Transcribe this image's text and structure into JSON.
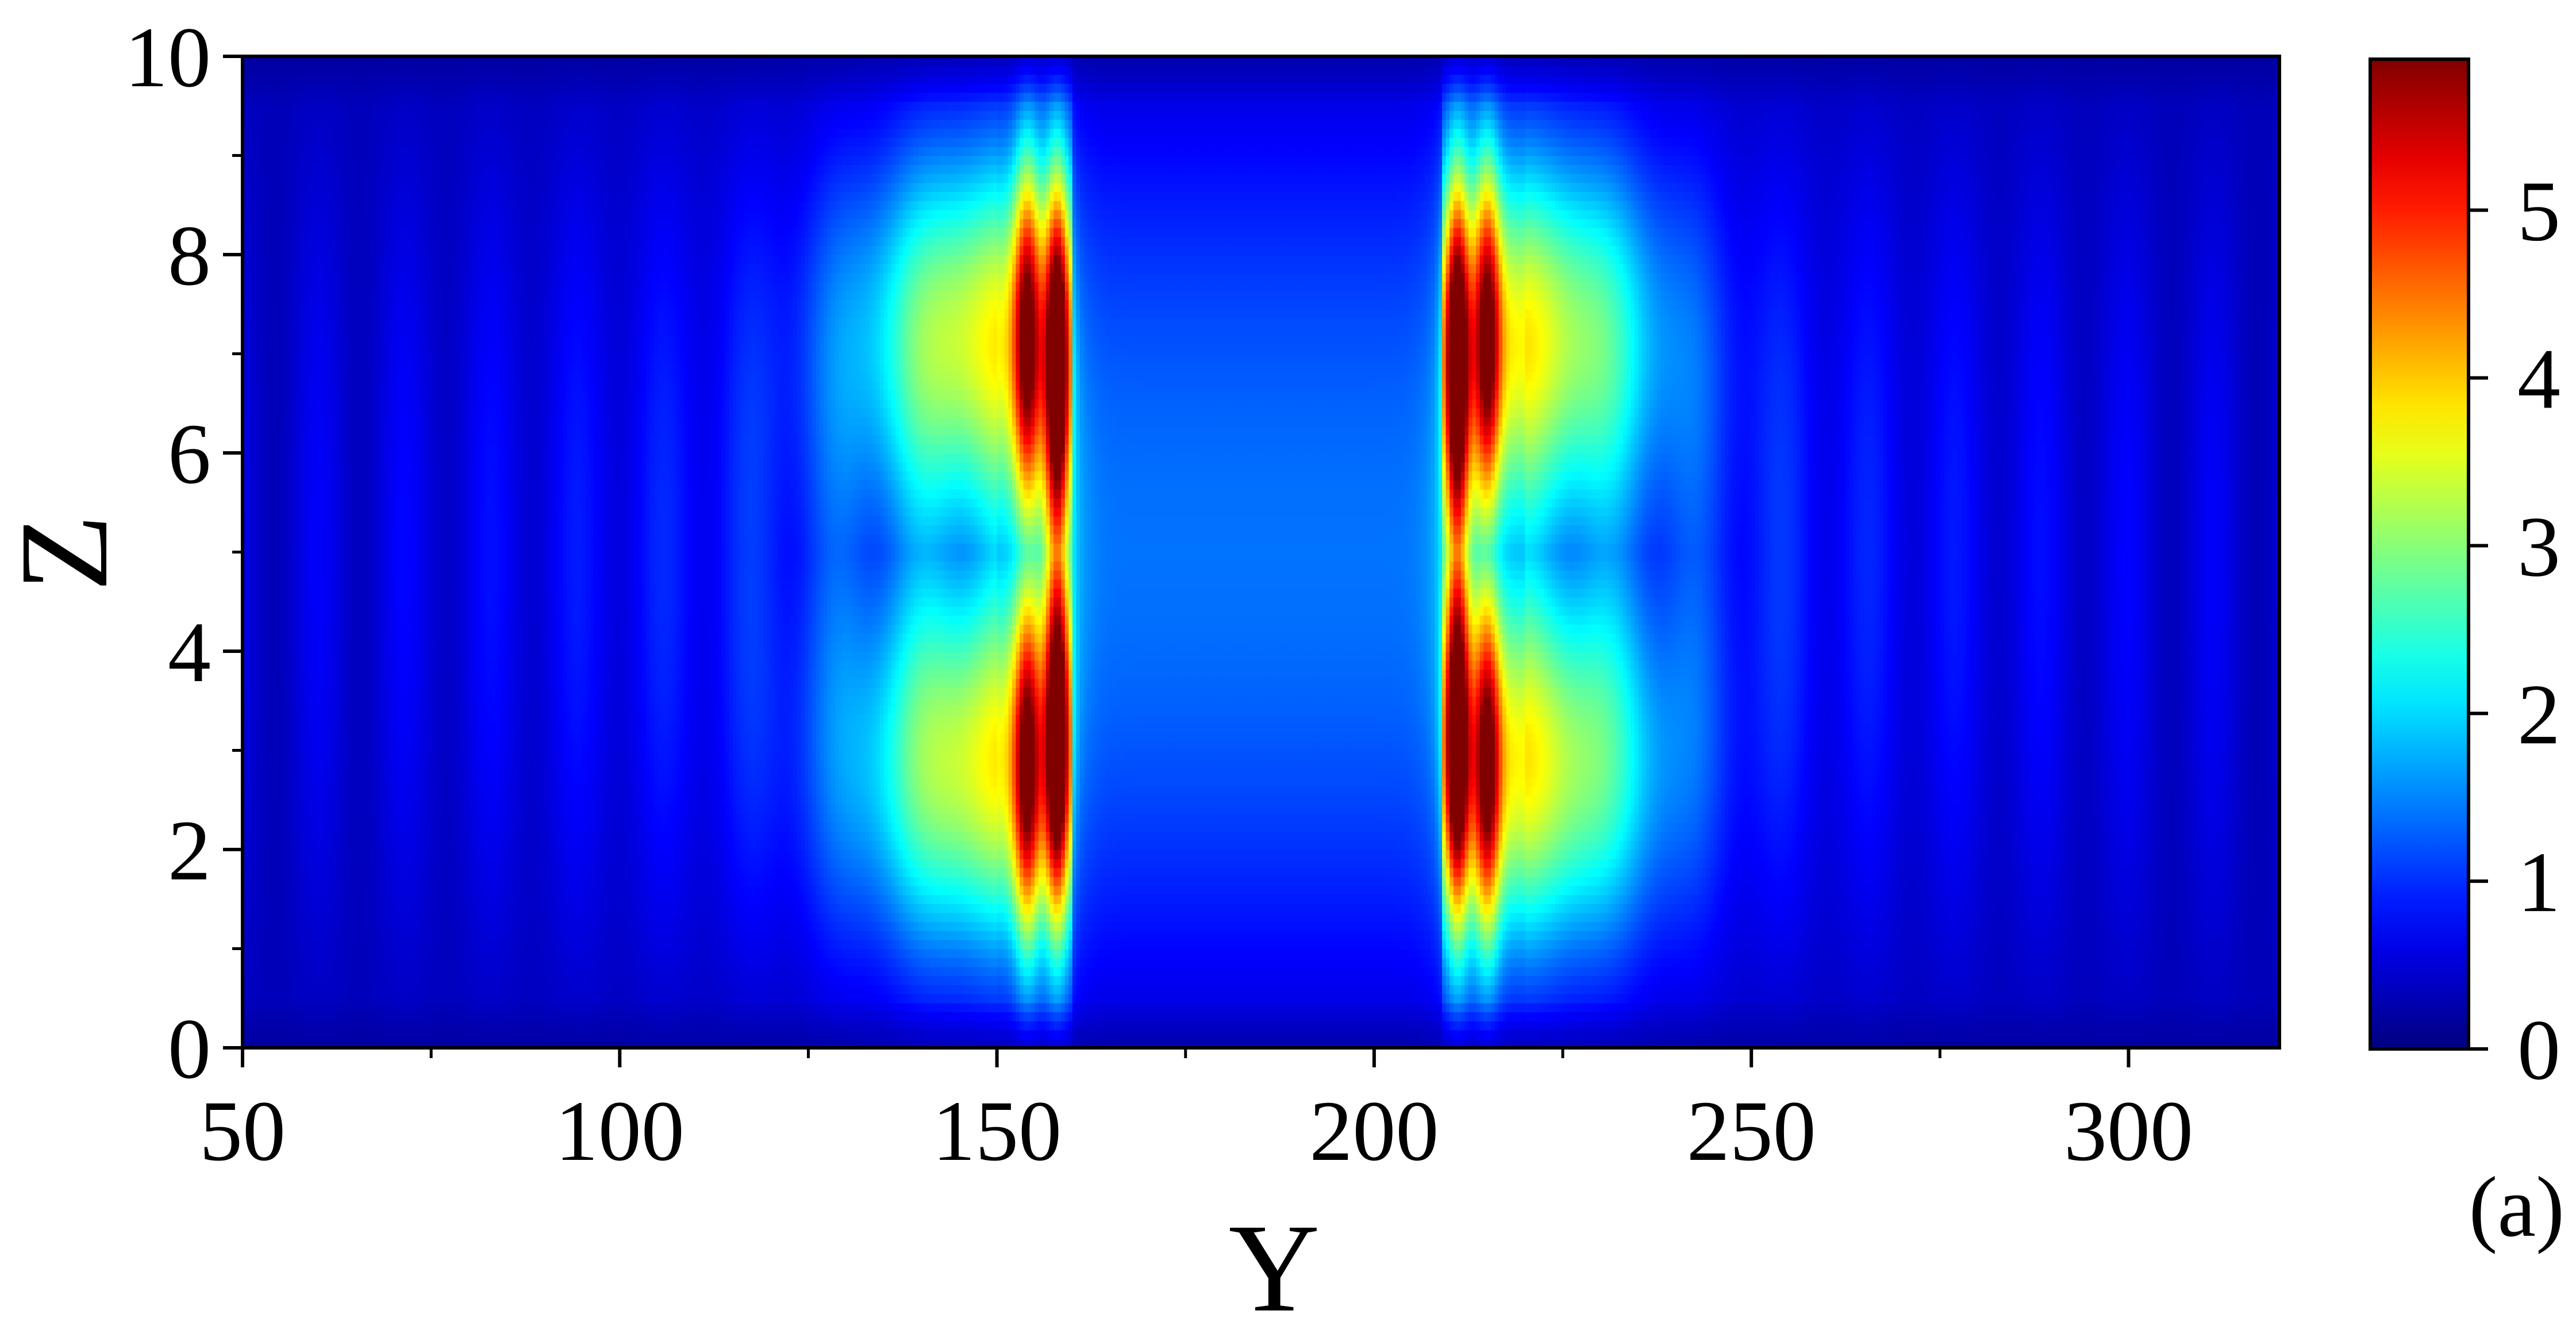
{
  "chart_data": {
    "type": "heatmap",
    "xlabel": "Y",
    "ylabel": "Z",
    "panel_label": "(a)",
    "xlim": [
      50,
      320
    ],
    "ylim": [
      0,
      10
    ],
    "x_ticks": [
      50,
      100,
      150,
      200,
      250,
      300
    ],
    "x_tick_labels": [
      "50",
      "100",
      "150",
      "200",
      "250",
      "300"
    ],
    "y_ticks": [
      0,
      2,
      4,
      6,
      8,
      10
    ],
    "y_tick_labels": [
      "0",
      "2",
      "4",
      "6",
      "8",
      "10"
    ],
    "colorbar": {
      "range": [
        0,
        5.9
      ],
      "ticks": [
        0,
        1,
        2,
        3,
        4,
        5
      ],
      "tick_labels": [
        "0",
        "1",
        "2",
        "3",
        "4",
        "5"
      ],
      "colormap": "jet"
    },
    "features": {
      "peak_lines_y": [
        158,
        211
      ],
      "side_lobes_y": [
        154,
        215
      ],
      "hot_spots_z": [
        2.8,
        7.2
      ],
      "peak_value": 5.9,
      "side_lobe_value": 4.4,
      "center_valley_value": 0.5,
      "background_value": 0.3
    },
    "grid": false
  }
}
